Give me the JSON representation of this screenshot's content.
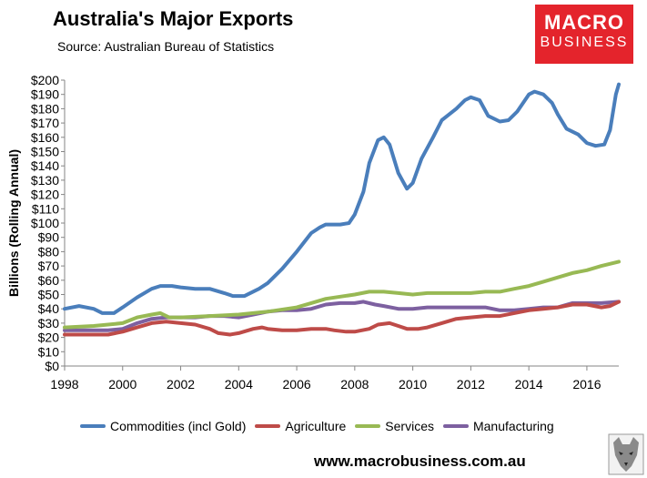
{
  "header": {
    "title": "Australia's Major Exports",
    "source": "Source:",
    "source_name": "Australian Bureau of Statistics"
  },
  "logo": {
    "line1": "MACRO",
    "line2": "BUSINESS",
    "color": "#e4242c"
  },
  "footer": {
    "url": "www.macrobusiness.com.au"
  },
  "chart_data": {
    "type": "line",
    "title": "Australia's Major Exports",
    "ylabel": "Billions (Rolling Annual)",
    "xlim": [
      1998,
      2017.1
    ],
    "ylim": [
      0,
      200
    ],
    "x_ticks": [
      1998,
      2000,
      2002,
      2004,
      2006,
      2008,
      2010,
      2012,
      2014,
      2016
    ],
    "x_tick_labels": [
      "1998",
      "2000",
      "2002",
      "2004",
      "2006",
      "2008",
      "2010",
      "2012",
      "2014",
      "2016"
    ],
    "y_ticks": [
      0,
      10,
      20,
      30,
      40,
      50,
      60,
      70,
      80,
      90,
      100,
      110,
      120,
      130,
      140,
      150,
      160,
      170,
      180,
      190,
      200
    ],
    "y_tick_labels": [
      "$0",
      "$10",
      "$20",
      "$30",
      "$40",
      "$50",
      "$60",
      "$70",
      "$80",
      "$90",
      "$100",
      "$110",
      "$120",
      "$130",
      "$140",
      "$150",
      "$160",
      "$170",
      "$180",
      "$190",
      "$200"
    ],
    "grid": false,
    "legend_position": "bottom",
    "series": [
      {
        "name": "Commodities (incl Gold)",
        "color": "#4a7ebb",
        "points": [
          [
            1998,
            40
          ],
          [
            1998.5,
            42
          ],
          [
            1999,
            40
          ],
          [
            1999.3,
            37
          ],
          [
            1999.7,
            37
          ],
          [
            2000,
            41
          ],
          [
            2000.5,
            48
          ],
          [
            2001,
            54
          ],
          [
            2001.3,
            56
          ],
          [
            2001.7,
            56
          ],
          [
            2002,
            55
          ],
          [
            2002.5,
            54
          ],
          [
            2003,
            54
          ],
          [
            2003.5,
            51
          ],
          [
            2003.8,
            49
          ],
          [
            2004.2,
            49
          ],
          [
            2004.7,
            54
          ],
          [
            2005,
            58
          ],
          [
            2005.5,
            68
          ],
          [
            2006,
            80
          ],
          [
            2006.5,
            93
          ],
          [
            2006.8,
            97
          ],
          [
            2007,
            99
          ],
          [
            2007.5,
            99
          ],
          [
            2007.8,
            100
          ],
          [
            2008,
            106
          ],
          [
            2008.3,
            122
          ],
          [
            2008.5,
            142
          ],
          [
            2008.8,
            158
          ],
          [
            2009,
            160
          ],
          [
            2009.2,
            155
          ],
          [
            2009.5,
            135
          ],
          [
            2009.8,
            124
          ],
          [
            2010,
            128
          ],
          [
            2010.3,
            145
          ],
          [
            2010.7,
            160
          ],
          [
            2011,
            172
          ],
          [
            2011.5,
            180
          ],
          [
            2011.8,
            186
          ],
          [
            2012,
            188
          ],
          [
            2012.3,
            186
          ],
          [
            2012.6,
            175
          ],
          [
            2013,
            171
          ],
          [
            2013.3,
            172
          ],
          [
            2013.6,
            178
          ],
          [
            2014,
            190
          ],
          [
            2014.2,
            192
          ],
          [
            2014.5,
            190
          ],
          [
            2014.8,
            184
          ],
          [
            2015,
            176
          ],
          [
            2015.3,
            166
          ],
          [
            2015.7,
            162
          ],
          [
            2016,
            156
          ],
          [
            2016.3,
            154
          ],
          [
            2016.6,
            155
          ],
          [
            2016.8,
            165
          ],
          [
            2017,
            190
          ],
          [
            2017.1,
            197
          ]
        ]
      },
      {
        "name": "Agriculture",
        "color": "#be4b48",
        "points": [
          [
            1998,
            22
          ],
          [
            1999,
            22
          ],
          [
            1999.5,
            22
          ],
          [
            2000,
            24
          ],
          [
            2000.5,
            27
          ],
          [
            2001,
            30
          ],
          [
            2001.5,
            31
          ],
          [
            2002,
            30
          ],
          [
            2002.5,
            29
          ],
          [
            2003,
            26
          ],
          [
            2003.3,
            23
          ],
          [
            2003.7,
            22
          ],
          [
            2004,
            23
          ],
          [
            2004.5,
            26
          ],
          [
            2004.8,
            27
          ],
          [
            2005,
            26
          ],
          [
            2005.5,
            25
          ],
          [
            2006,
            25
          ],
          [
            2006.5,
            26
          ],
          [
            2007,
            26
          ],
          [
            2007.3,
            25
          ],
          [
            2007.7,
            24
          ],
          [
            2008,
            24
          ],
          [
            2008.5,
            26
          ],
          [
            2008.8,
            29
          ],
          [
            2009.2,
            30
          ],
          [
            2009.5,
            28
          ],
          [
            2009.8,
            26
          ],
          [
            2010.2,
            26
          ],
          [
            2010.5,
            27
          ],
          [
            2011,
            30
          ],
          [
            2011.5,
            33
          ],
          [
            2012,
            34
          ],
          [
            2012.5,
            35
          ],
          [
            2013,
            35
          ],
          [
            2013.5,
            37
          ],
          [
            2014,
            39
          ],
          [
            2014.5,
            40
          ],
          [
            2015,
            41
          ],
          [
            2015.5,
            43
          ],
          [
            2016,
            43
          ],
          [
            2016.5,
            41
          ],
          [
            2016.8,
            42
          ],
          [
            2017.1,
            45
          ]
        ]
      },
      {
        "name": "Services",
        "color": "#98b954",
        "points": [
          [
            1998,
            27
          ],
          [
            1999,
            28
          ],
          [
            1999.5,
            29
          ],
          [
            2000,
            30
          ],
          [
            2000.5,
            34
          ],
          [
            2001,
            36
          ],
          [
            2001.3,
            37
          ],
          [
            2001.6,
            34
          ],
          [
            2002,
            34
          ],
          [
            2003,
            35
          ],
          [
            2004,
            36
          ],
          [
            2005,
            38
          ],
          [
            2006,
            41
          ],
          [
            2006.5,
            44
          ],
          [
            2007,
            47
          ],
          [
            2008,
            50
          ],
          [
            2008.5,
            52
          ],
          [
            2009,
            52
          ],
          [
            2009.5,
            51
          ],
          [
            2010,
            50
          ],
          [
            2010.5,
            51
          ],
          [
            2011,
            51
          ],
          [
            2012,
            51
          ],
          [
            2012.5,
            52
          ],
          [
            2013,
            52
          ],
          [
            2013.5,
            54
          ],
          [
            2014,
            56
          ],
          [
            2014.5,
            59
          ],
          [
            2015,
            62
          ],
          [
            2015.5,
            65
          ],
          [
            2016,
            67
          ],
          [
            2016.5,
            70
          ],
          [
            2017.1,
            73
          ]
        ]
      },
      {
        "name": "Manufacturing",
        "color": "#7d60a0",
        "points": [
          [
            1998,
            25
          ],
          [
            1999,
            25
          ],
          [
            1999.5,
            25
          ],
          [
            2000,
            26
          ],
          [
            2000.5,
            30
          ],
          [
            2001,
            33
          ],
          [
            2001.5,
            34
          ],
          [
            2002,
            34
          ],
          [
            2002.5,
            34
          ],
          [
            2003,
            35
          ],
          [
            2003.5,
            35
          ],
          [
            2004,
            34
          ],
          [
            2004.5,
            36
          ],
          [
            2005,
            38
          ],
          [
            2005.5,
            39
          ],
          [
            2006,
            39
          ],
          [
            2006.5,
            40
          ],
          [
            2007,
            43
          ],
          [
            2007.5,
            44
          ],
          [
            2008,
            44
          ],
          [
            2008.3,
            45
          ],
          [
            2008.7,
            43
          ],
          [
            2009,
            42
          ],
          [
            2009.5,
            40
          ],
          [
            2010,
            40
          ],
          [
            2010.5,
            41
          ],
          [
            2011,
            41
          ],
          [
            2011.5,
            41
          ],
          [
            2012,
            41
          ],
          [
            2012.5,
            41
          ],
          [
            2013,
            39
          ],
          [
            2013.5,
            39
          ],
          [
            2014,
            40
          ],
          [
            2014.5,
            41
          ],
          [
            2015,
            41
          ],
          [
            2015.5,
            44
          ],
          [
            2016,
            44
          ],
          [
            2016.5,
            44
          ],
          [
            2017.1,
            45
          ]
        ]
      }
    ]
  }
}
